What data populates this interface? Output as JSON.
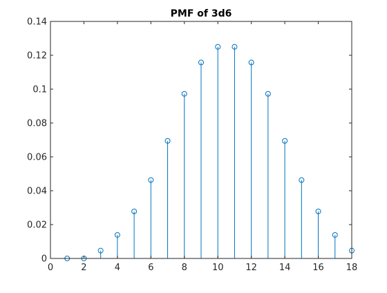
{
  "chart_data": {
    "type": "scatter",
    "style": "stem",
    "title": "PMF of 3d6",
    "xlabel": "",
    "ylabel": "",
    "xlim": [
      0,
      18
    ],
    "ylim": [
      0,
      0.14
    ],
    "xticks": [
      0,
      2,
      4,
      6,
      8,
      10,
      12,
      14,
      16,
      18
    ],
    "yticks": [
      0,
      0.02,
      0.04,
      0.06,
      0.08,
      0.1,
      0.12,
      0.14
    ],
    "xtick_labels": [
      "0",
      "2",
      "4",
      "6",
      "8",
      "10",
      "12",
      "14",
      "16",
      "18"
    ],
    "ytick_labels": [
      "0",
      "0.02",
      "0.04",
      "0.06",
      "0.08",
      "0.1",
      "0.12",
      "0.14"
    ],
    "grid": false,
    "marker": "circle",
    "color": "#0072BD",
    "axis_color": "#262626",
    "x": [
      1,
      2,
      3,
      4,
      5,
      6,
      7,
      8,
      9,
      10,
      11,
      12,
      13,
      14,
      15,
      16,
      17,
      18
    ],
    "y": [
      0,
      0,
      0.00463,
      0.01389,
      0.02778,
      0.0463,
      0.06944,
      0.09722,
      0.11574,
      0.125,
      0.125,
      0.11574,
      0.09722,
      0.06944,
      0.0463,
      0.02778,
      0.01389,
      0.00463
    ]
  }
}
